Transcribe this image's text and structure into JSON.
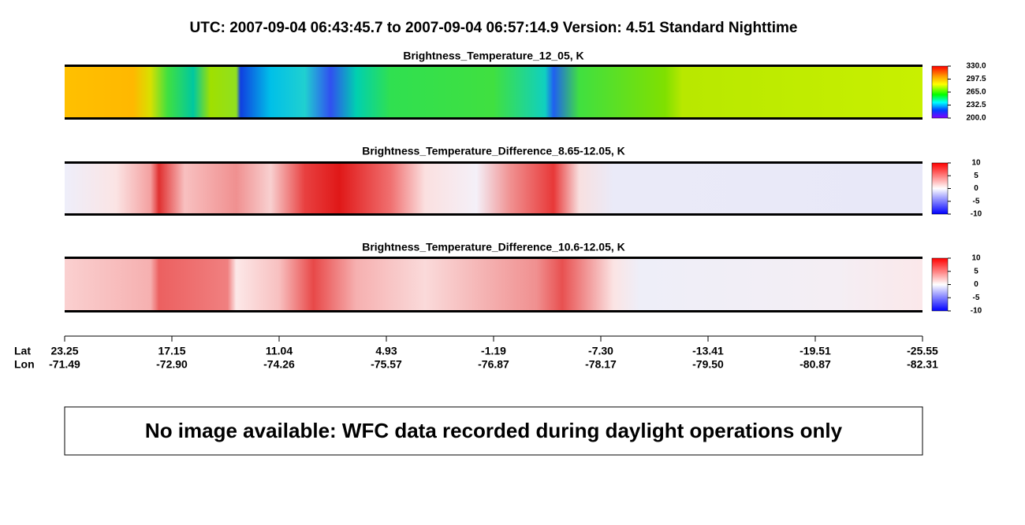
{
  "header": {
    "title": "UTC:  2007-09-04   06:43:45.7  to  2007-09-04   06:57:14.9    Version: 4.51  Standard Nighttime"
  },
  "panels": [
    {
      "title": "Brightness_Temperature_12_05, K",
      "ticks": [
        {
          "value": 330,
          "label": "330.0"
        },
        {
          "value": 297.5,
          "label": "297.5"
        },
        {
          "value": 265,
          "label": "265.0"
        },
        {
          "value": 232.5,
          "label": "232.5"
        },
        {
          "value": 200,
          "label": "200.0"
        }
      ]
    },
    {
      "title": "Brightness_Temperature_Difference_8.65-12.05, K",
      "ticks": [
        10,
        5,
        0,
        -5,
        -10
      ]
    },
    {
      "title": "Brightness_Temperature_Difference_10.6-12.05, K",
      "ticks": [
        10,
        5,
        0,
        -5,
        -10
      ]
    }
  ],
  "axis": {
    "lat_label": "Lat",
    "lon_label": "Lon",
    "lat": [
      "23.25",
      "17.15",
      "11.04",
      "4.93",
      "-1.19",
      "-7.30",
      "-13.41",
      "-19.51",
      "-25.55"
    ],
    "lon": [
      "-71.49",
      "-72.90",
      "-74.26",
      "-75.57",
      "-76.87",
      "-78.17",
      "-79.50",
      "-80.87",
      "-82.31"
    ]
  },
  "message": "No image available: WFC data recorded during daylight operations only"
}
